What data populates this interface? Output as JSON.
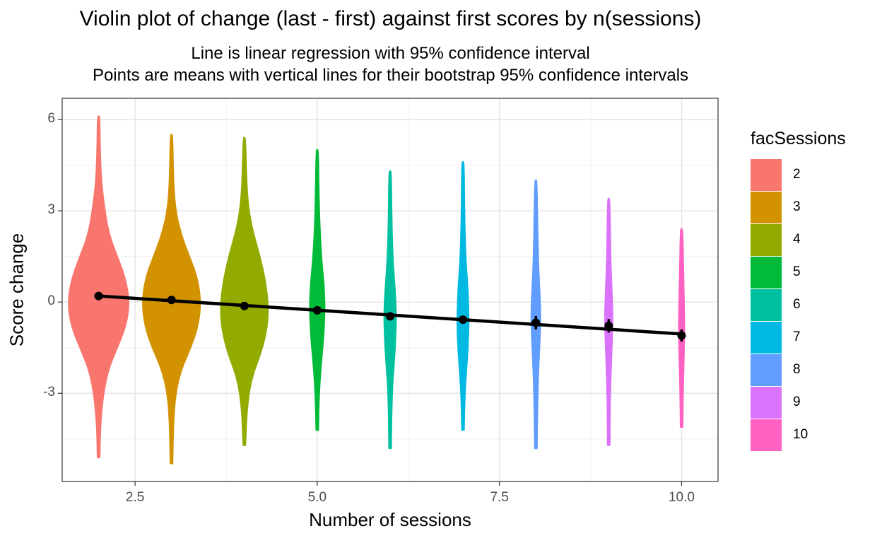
{
  "chart_data": {
    "type": "violin",
    "title": "Violin plot of change (last - first) against first scores by n(sessions)",
    "subtitle_lines": [
      "Line is linear regression with 95% confidence interval",
      "Points are means with vertical lines for their bootstrap 95% confidence intervals"
    ],
    "xlabel": "Number of sessions",
    "ylabel": "Score change",
    "xlim": [
      1.5,
      10.5
    ],
    "ylim": [
      -5.9,
      6.7
    ],
    "x_ticks": [
      2.5,
      5.0,
      7.5,
      10.0
    ],
    "x_tick_labels": [
      "2.5",
      "5.0",
      "7.5",
      "10.0"
    ],
    "y_ticks": [
      -3,
      0,
      3,
      6
    ],
    "y_tick_labels": [
      "-3",
      "0",
      "3",
      "6"
    ],
    "grid": true,
    "legend": {
      "title": "facSessions",
      "placement": "right",
      "entries": [
        "2",
        "3",
        "4",
        "5",
        "6",
        "7",
        "8",
        "9",
        "10"
      ]
    },
    "series": [
      {
        "x": 2,
        "color": "#F8766D",
        "min": -5.1,
        "max": 6.1,
        "mean": 0.2,
        "ci": [
          0.15,
          0.25
        ],
        "profile": [
          [
            -5.1,
            0.01
          ],
          [
            -4.0,
            0.02
          ],
          [
            -3.0,
            0.06
          ],
          [
            -2.2,
            0.13
          ],
          [
            -1.5,
            0.25
          ],
          [
            -0.8,
            0.37
          ],
          [
            0.0,
            0.42
          ],
          [
            0.8,
            0.36
          ],
          [
            1.5,
            0.25
          ],
          [
            2.2,
            0.14
          ],
          [
            3.0,
            0.08
          ],
          [
            4.0,
            0.03
          ],
          [
            5.0,
            0.015
          ],
          [
            6.1,
            0.01
          ]
        ]
      },
      {
        "x": 3,
        "color": "#D39200",
        "min": -5.3,
        "max": 5.5,
        "mean": 0.07,
        "ci": [
          0.02,
          0.12
        ],
        "profile": [
          [
            -5.3,
            0.01
          ],
          [
            -4.0,
            0.02
          ],
          [
            -3.0,
            0.05
          ],
          [
            -2.2,
            0.13
          ],
          [
            -1.5,
            0.26
          ],
          [
            -0.8,
            0.36
          ],
          [
            0.0,
            0.4
          ],
          [
            0.8,
            0.35
          ],
          [
            1.5,
            0.24
          ],
          [
            2.2,
            0.13
          ],
          [
            3.0,
            0.05
          ],
          [
            4.0,
            0.02
          ],
          [
            5.5,
            0.01
          ]
        ]
      },
      {
        "x": 4,
        "color": "#93AA00",
        "min": -4.7,
        "max": 5.4,
        "mean": -0.13,
        "ci": [
          -0.2,
          -0.06
        ],
        "profile": [
          [
            -4.7,
            0.01
          ],
          [
            -3.5,
            0.03
          ],
          [
            -2.5,
            0.09
          ],
          [
            -1.5,
            0.25
          ],
          [
            -0.5,
            0.33
          ],
          [
            0.5,
            0.3
          ],
          [
            1.5,
            0.21
          ],
          [
            2.5,
            0.09
          ],
          [
            3.5,
            0.03
          ],
          [
            5.4,
            0.01
          ]
        ]
      },
      {
        "x": 5,
        "color": "#00BA38",
        "min": -4.2,
        "max": 5.0,
        "mean": -0.27,
        "ci": [
          -0.35,
          -0.19
        ],
        "profile": [
          [
            -4.2,
            0.01
          ],
          [
            -3.0,
            0.02
          ],
          [
            -2.0,
            0.05
          ],
          [
            -1.2,
            0.08
          ],
          [
            -0.3,
            0.1
          ],
          [
            0.5,
            0.09
          ],
          [
            1.5,
            0.05
          ],
          [
            3.0,
            0.02
          ],
          [
            5.0,
            0.01
          ]
        ]
      },
      {
        "x": 6,
        "color": "#00C19F",
        "min": -4.8,
        "max": 4.3,
        "mean": -0.47,
        "ci": [
          -0.6,
          -0.34
        ],
        "profile": [
          [
            -4.8,
            0.01
          ],
          [
            -3.0,
            0.02
          ],
          [
            -2.0,
            0.05
          ],
          [
            -1.2,
            0.07
          ],
          [
            -0.4,
            0.08
          ],
          [
            0.5,
            0.06
          ],
          [
            1.5,
            0.03
          ],
          [
            3.0,
            0.015
          ],
          [
            4.3,
            0.01
          ]
        ]
      },
      {
        "x": 7,
        "color": "#00B9E3",
        "min": -4.2,
        "max": 4.6,
        "mean": -0.58,
        "ci": [
          -0.7,
          -0.46
        ],
        "profile": [
          [
            -4.2,
            0.01
          ],
          [
            -3.0,
            0.02
          ],
          [
            -2.0,
            0.05
          ],
          [
            -1.2,
            0.07
          ],
          [
            -0.4,
            0.075
          ],
          [
            0.5,
            0.06
          ],
          [
            1.5,
            0.03
          ],
          [
            3.0,
            0.015
          ],
          [
            4.6,
            0.01
          ]
        ]
      },
      {
        "x": 8,
        "color": "#619CFF",
        "min": -4.8,
        "max": 4.0,
        "mean": -0.68,
        "ci": [
          -0.9,
          -0.46
        ],
        "profile": [
          [
            -4.8,
            0.01
          ],
          [
            -3.0,
            0.02
          ],
          [
            -2.0,
            0.035
          ],
          [
            -1.0,
            0.055
          ],
          [
            -0.3,
            0.06
          ],
          [
            0.5,
            0.045
          ],
          [
            1.5,
            0.025
          ],
          [
            4.0,
            0.01
          ]
        ]
      },
      {
        "x": 9,
        "color": "#DB72FB",
        "min": -4.7,
        "max": 3.4,
        "mean": -0.78,
        "ci": [
          -1.0,
          -0.56
        ],
        "profile": [
          [
            -4.7,
            0.01
          ],
          [
            -3.0,
            0.015
          ],
          [
            -2.0,
            0.03
          ],
          [
            -1.0,
            0.045
          ],
          [
            -0.4,
            0.05
          ],
          [
            0.5,
            0.035
          ],
          [
            1.5,
            0.02
          ],
          [
            3.4,
            0.01
          ]
        ]
      },
      {
        "x": 10,
        "color": "#FF61C3",
        "min": -4.1,
        "max": 2.4,
        "mean": -1.1,
        "ci": [
          -1.3,
          -0.9
        ],
        "profile": [
          [
            -4.1,
            0.01
          ],
          [
            -3.0,
            0.015
          ],
          [
            -2.0,
            0.025
          ],
          [
            -1.0,
            0.035
          ],
          [
            0.0,
            0.03
          ],
          [
            1.0,
            0.02
          ],
          [
            2.4,
            0.01
          ]
        ]
      }
    ],
    "regression": {
      "x": [
        2,
        10
      ],
      "y": [
        0.2,
        -1.05
      ]
    }
  }
}
